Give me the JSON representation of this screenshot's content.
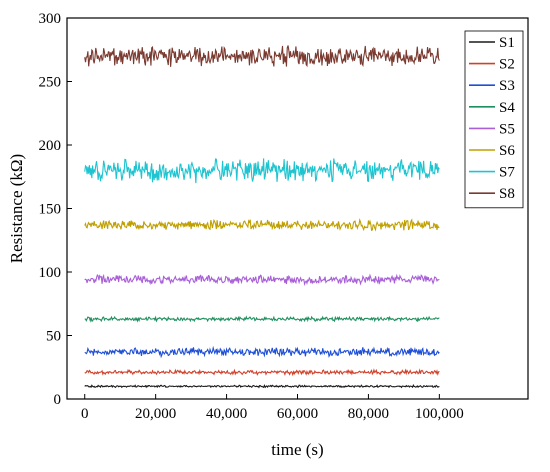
{
  "chart_data": {
    "type": "line",
    "title": "",
    "xlabel": "time (s)",
    "ylabel": "Resistance (kΩ)",
    "xlim": [
      -5000,
      125000
    ],
    "ylim": [
      0,
      300
    ],
    "x_ticks": [
      0,
      20000,
      40000,
      60000,
      80000,
      100000
    ],
    "x_tick_labels": [
      "0",
      "20,000",
      "40,000",
      "60,000",
      "80,000",
      "100,000"
    ],
    "y_ticks": [
      0,
      50,
      100,
      150,
      200,
      250,
      300
    ],
    "y_tick_labels": [
      "0",
      "50",
      "100",
      "150",
      "200",
      "250",
      "300"
    ],
    "x_range": [
      0,
      100000
    ],
    "legend_position": "top-right",
    "grid": false,
    "series": [
      {
        "name": "S1",
        "color": "#1a1a1a",
        "mean": 10,
        "noise": 0.6
      },
      {
        "name": "S2",
        "color": "#d0402a",
        "mean": 21,
        "noise": 1.2
      },
      {
        "name": "S3",
        "color": "#1f4fd6",
        "mean": 37,
        "noise": 2.5
      },
      {
        "name": "S4",
        "color": "#1f8f5f",
        "mean": 63,
        "noise": 1.2
      },
      {
        "name": "S5",
        "color": "#a85fd8",
        "mean": 94,
        "noise": 2.5
      },
      {
        "name": "S6",
        "color": "#c0a000",
        "mean": 137,
        "noise": 3.0
      },
      {
        "name": "S7",
        "color": "#1ec4d0",
        "mean": 180,
        "noise": 7.0
      },
      {
        "name": "S8",
        "color": "#7a3a30",
        "mean": 270,
        "noise": 6.0
      }
    ]
  }
}
